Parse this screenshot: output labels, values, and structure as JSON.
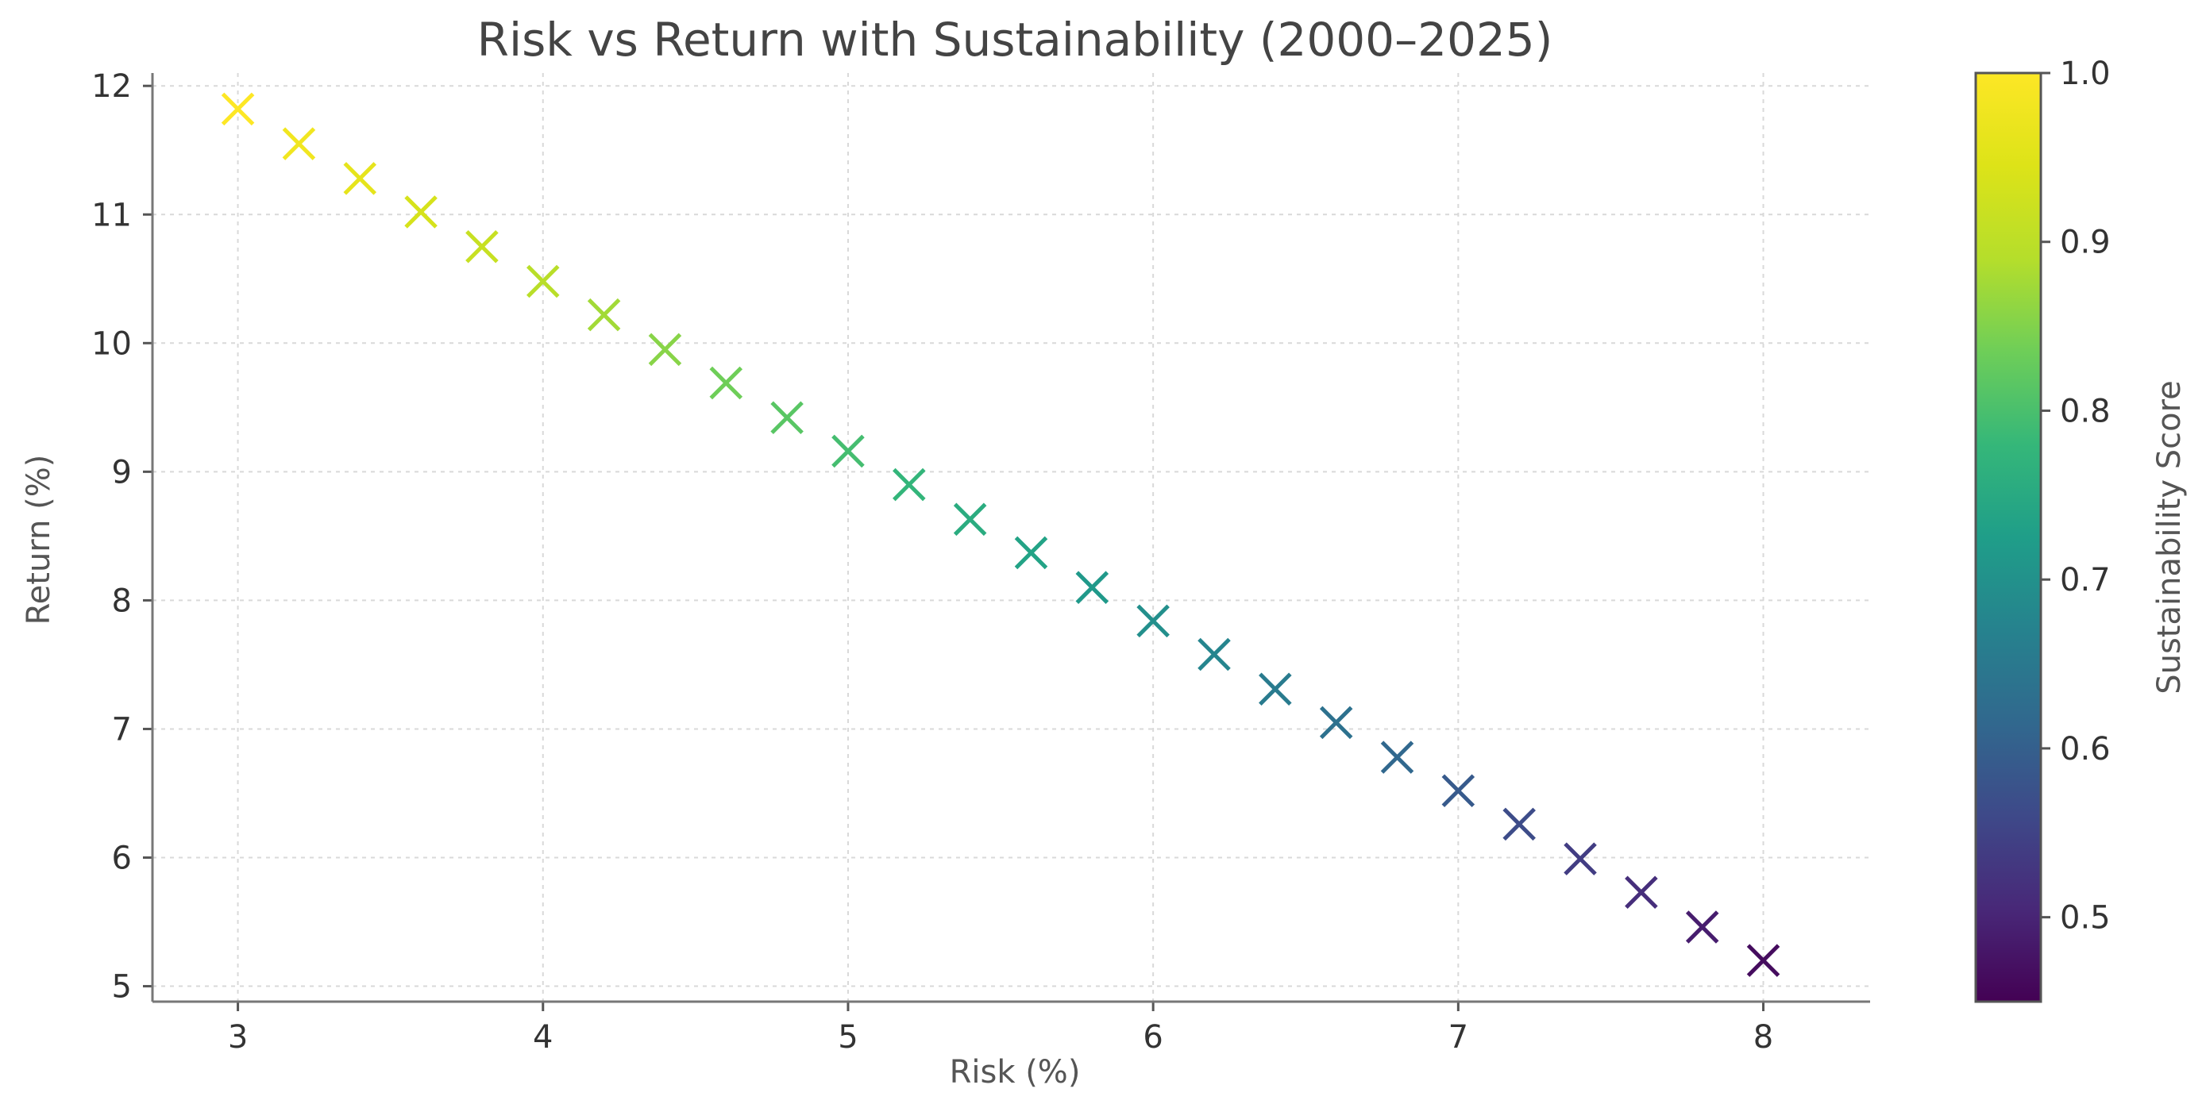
{
  "chart_data": {
    "type": "scatter",
    "title": "Risk vs Return with Sustainability (2000–2025)",
    "xlabel": "Risk (%)",
    "ylabel": "Return (%)",
    "xlim": [
      2.72,
      8.35
    ],
    "ylim": [
      4.88,
      12.1
    ],
    "xticks": [
      "3",
      "4",
      "5",
      "6",
      "7",
      "8"
    ],
    "yticks": [
      "5",
      "6",
      "7",
      "8",
      "9",
      "10",
      "11",
      "12"
    ],
    "grid": true,
    "marker": "x",
    "colormap": "viridis",
    "colorbar": {
      "label": "Sustainability Score",
      "range": [
        0.45,
        1.0
      ],
      "ticks": [
        "0.5",
        "0.6",
        "0.7",
        "0.8",
        "0.9",
        "1.0"
      ]
    },
    "points": [
      {
        "x": 3.0,
        "y": 11.82,
        "score": 1.0
      },
      {
        "x": 3.2,
        "y": 11.55,
        "score": 0.98
      },
      {
        "x": 3.4,
        "y": 11.28,
        "score": 0.96
      },
      {
        "x": 3.6,
        "y": 11.02,
        "score": 0.935
      },
      {
        "x": 3.8,
        "y": 10.75,
        "score": 0.915
      },
      {
        "x": 4.0,
        "y": 10.48,
        "score": 0.895
      },
      {
        "x": 4.2,
        "y": 10.22,
        "score": 0.875
      },
      {
        "x": 4.4,
        "y": 9.95,
        "score": 0.855
      },
      {
        "x": 4.6,
        "y": 9.69,
        "score": 0.835
      },
      {
        "x": 4.8,
        "y": 9.42,
        "score": 0.815
      },
      {
        "x": 5.0,
        "y": 9.16,
        "score": 0.795
      },
      {
        "x": 5.2,
        "y": 8.9,
        "score": 0.775
      },
      {
        "x": 5.4,
        "y": 8.63,
        "score": 0.755
      },
      {
        "x": 5.6,
        "y": 8.37,
        "score": 0.735
      },
      {
        "x": 5.8,
        "y": 8.1,
        "score": 0.715
      },
      {
        "x": 6.0,
        "y": 7.84,
        "score": 0.695
      },
      {
        "x": 6.2,
        "y": 7.58,
        "score": 0.675
      },
      {
        "x": 6.4,
        "y": 7.31,
        "score": 0.655
      },
      {
        "x": 6.6,
        "y": 7.05,
        "score": 0.635
      },
      {
        "x": 6.8,
        "y": 6.78,
        "score": 0.615
      },
      {
        "x": 7.0,
        "y": 6.52,
        "score": 0.59
      },
      {
        "x": 7.2,
        "y": 6.26,
        "score": 0.565
      },
      {
        "x": 7.4,
        "y": 5.99,
        "score": 0.54
      },
      {
        "x": 7.6,
        "y": 5.73,
        "score": 0.515
      },
      {
        "x": 7.8,
        "y": 5.46,
        "score": 0.49
      },
      {
        "x": 8.0,
        "y": 5.2,
        "score": 0.465
      }
    ]
  }
}
